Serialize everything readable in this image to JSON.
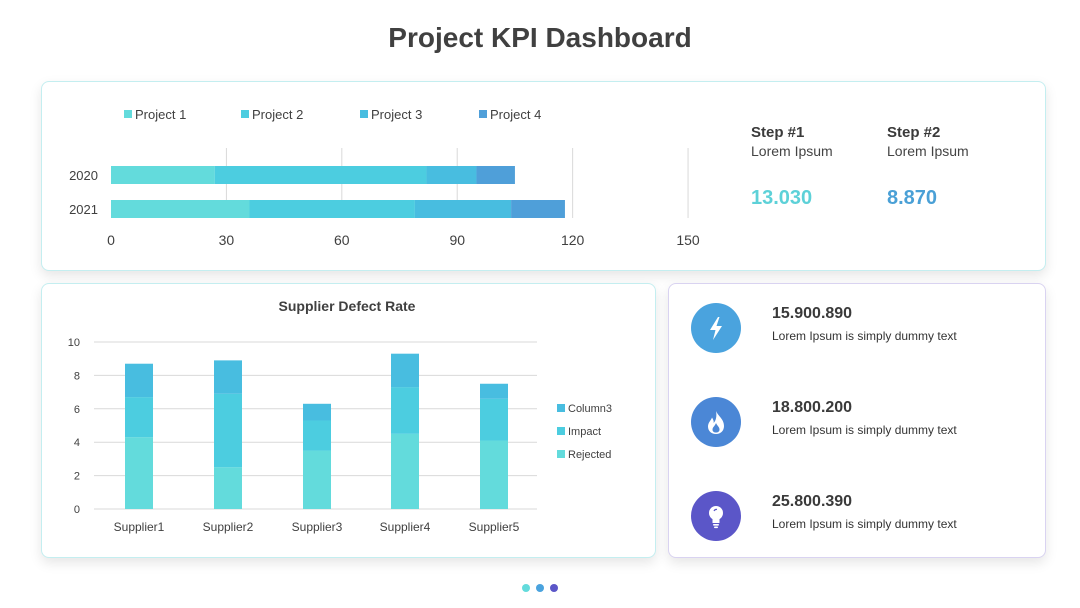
{
  "page": {
    "title": "Project KPI Dashboard"
  },
  "colors": {
    "project1": "#63dbdc",
    "project2": "#4ccde0",
    "project3": "#48bde0",
    "project4": "#4f9fd9",
    "step1_value": "#5dd1d8",
    "step2_value": "#4aa0d6",
    "kpi1": "#4aa3de",
    "kpi2": "#4b87d6",
    "kpi3": "#5b56c8"
  },
  "steps": [
    {
      "title": "Step #1",
      "subtitle": "Lorem Ipsum",
      "value": "13.030"
    },
    {
      "title": "Step #2",
      "subtitle": "Lorem Ipsum",
      "value": "8.870"
    }
  ],
  "kpis": [
    {
      "value": "15.900.890",
      "description": "Lorem Ipsum is simply dummy text",
      "icon": "lightning-icon"
    },
    {
      "value": "18.800.200",
      "description": "Lorem Ipsum is simply dummy text",
      "icon": "fire-icon"
    },
    {
      "value": "25.800.390",
      "description": "Lorem Ipsum is simply dummy text",
      "icon": "lightbulb-icon"
    }
  ],
  "pagination": {
    "count": 3,
    "active": 2
  },
  "chart_data": [
    {
      "type": "bar",
      "orientation": "horizontal",
      "stacked": true,
      "categories": [
        "2020",
        "2021"
      ],
      "series": [
        {
          "name": "Project 1",
          "values": [
            27,
            36
          ]
        },
        {
          "name": "Project 2",
          "values": [
            55,
            43
          ]
        },
        {
          "name": "Project 3",
          "values": [
            13,
            25
          ]
        },
        {
          "name": "Project 4",
          "values": [
            10,
            14
          ]
        }
      ],
      "xlim": [
        0,
        150
      ],
      "xticks": [
        "0",
        "30",
        "60",
        "90",
        "120",
        "150"
      ],
      "grid": true,
      "legend": "top"
    },
    {
      "type": "bar",
      "stacked": true,
      "title": "Supplier Defect Rate",
      "categories": [
        "Supplier1",
        "Supplier2",
        "Supplier3",
        "Supplier4",
        "Supplier5"
      ],
      "series": [
        {
          "name": "Rejected",
          "values": [
            4.3,
            2.5,
            3.5,
            4.5,
            4.1
          ]
        },
        {
          "name": "Impact",
          "values": [
            2.4,
            4.4,
            1.8,
            2.8,
            2.5
          ]
        },
        {
          "name": "Column3",
          "values": [
            2.0,
            2.0,
            1.0,
            2.0,
            0.9
          ]
        }
      ],
      "ylim": [
        0,
        10
      ],
      "yticks": [
        "0",
        "2",
        "4",
        "6",
        "8",
        "10"
      ],
      "grid": true,
      "legend": "right"
    }
  ]
}
